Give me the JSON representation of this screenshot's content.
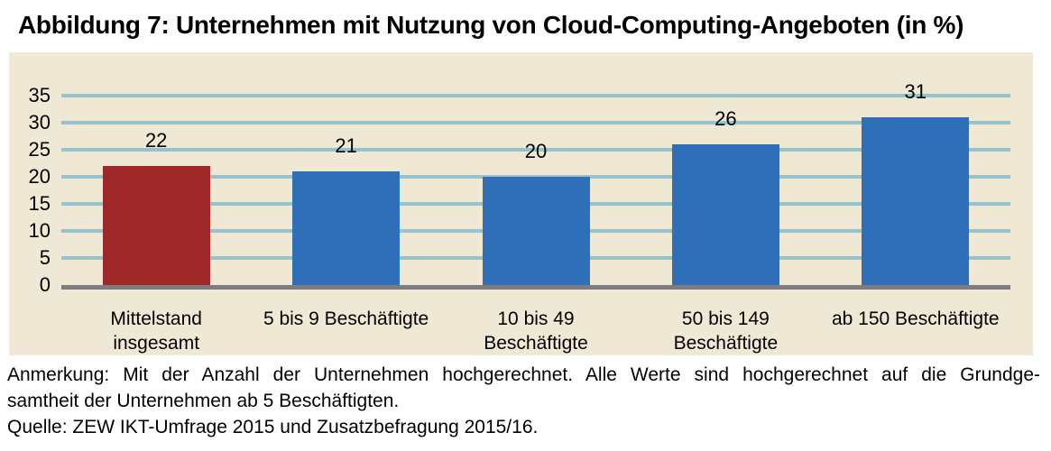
{
  "colors": {
    "page_bg": "#ffffff",
    "panel_bg": "#efe8d4",
    "gridline": "#95c2cb",
    "axis_line": "#7d7d7d",
    "bar_red": "#9e2727",
    "bar_blue": "#2e6fb7",
    "text": "#000000"
  },
  "chart_data": {
    "type": "bar",
    "title": "Abbildung 7: Unternehmen mit Nutzung von Cloud-Computing-Angeboten (in %)",
    "categories": [
      "Mittelstand\ninsgesamt",
      "5 bis 9 Beschäftigte",
      "10 bis 49\nBeschäftigte",
      "50 bis 149\nBeschäftigte",
      "ab 150 Beschäftigte"
    ],
    "values": [
      22,
      21,
      20,
      26,
      31
    ],
    "bar_colors": [
      "#9e2727",
      "#2e6fb7",
      "#2e6fb7",
      "#2e6fb7",
      "#2e6fb7"
    ],
    "xlabel": "",
    "ylabel": "",
    "ylim": [
      0,
      35
    ],
    "yticks": [
      0,
      5,
      10,
      15,
      20,
      25,
      30,
      35
    ],
    "grid": true,
    "value_labels": true,
    "legend": false
  },
  "annotation": {
    "lines": [
      "Anmerkung: Mit der Anzahl der Unternehmen hochgerechnet. Alle Werte sind hochgerechnet auf die Grundge-",
      "samtheit der Unternehmen ab 5 Beschäftigten.",
      "Quelle: ZEW IKT-Umfrage 2015 und Zusatzbefragung 2015/16."
    ]
  }
}
